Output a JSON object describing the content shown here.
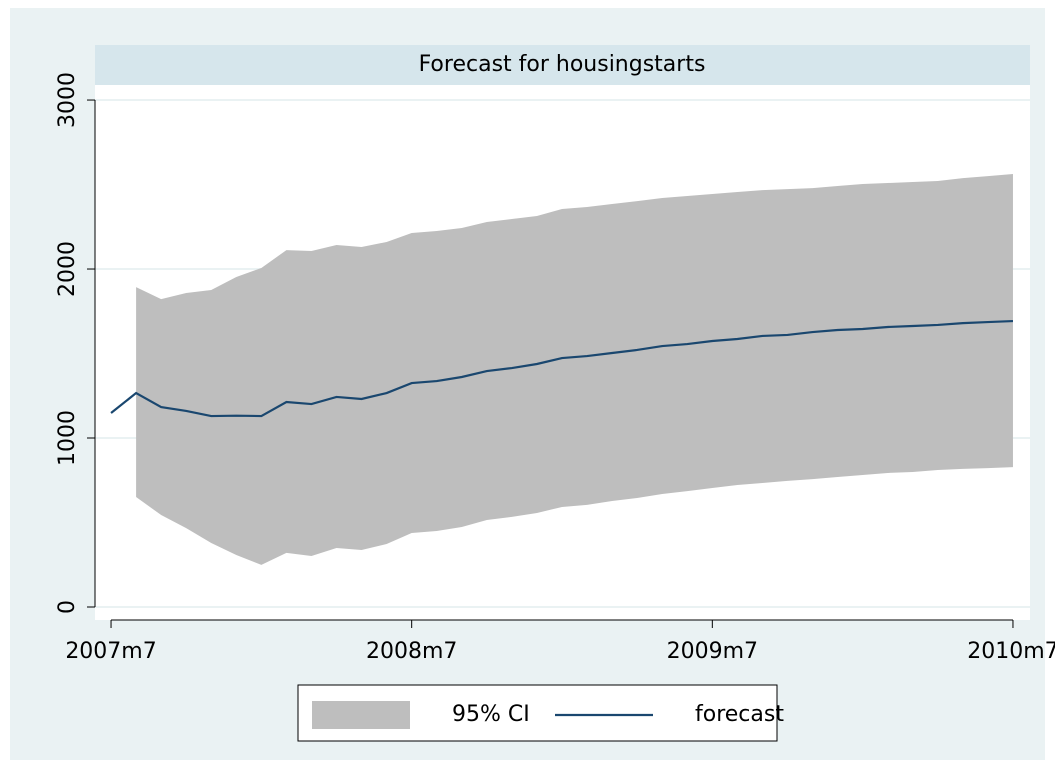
{
  "chart_data": {
    "type": "line",
    "title": "Forecast for housingstarts",
    "x": [
      570,
      571,
      572,
      573,
      574,
      575,
      576,
      577,
      578,
      579,
      580,
      581,
      582,
      583,
      584,
      585,
      586,
      587,
      588,
      589,
      590,
      591,
      592,
      593,
      594,
      595,
      596,
      597,
      598,
      599,
      600,
      601,
      602,
      603,
      604,
      605,
      606
    ],
    "xlim": [
      569.36,
      606.68
    ],
    "xticks": [
      {
        "value": 570,
        "label": "2007m7"
      },
      {
        "value": 582,
        "label": "2008m7"
      },
      {
        "value": 594,
        "label": "2009m7"
      },
      {
        "value": 606,
        "label": "2010m7"
      }
    ],
    "ylim": [
      -77,
      3089
    ],
    "yticks": [
      0,
      1000,
      2000,
      3000
    ],
    "grid": true,
    "series": [
      {
        "name": "95% CI",
        "color": "#bebebe",
        "upper": [
          null,
          1893,
          1822,
          1858,
          1876,
          1953,
          2006,
          2112,
          2107,
          2142,
          2130,
          2160,
          2213,
          2225,
          2243,
          2278,
          2296,
          2314,
          2355,
          2367,
          2385,
          2402,
          2420,
          2432,
          2444,
          2456,
          2467,
          2473,
          2479,
          2491,
          2503,
          2509,
          2515,
          2521,
          2538,
          2550,
          2562
        ],
        "lower": [
          null,
          651,
          544,
          467,
          379,
          308,
          249,
          320,
          302,
          349,
          337,
          373,
          438,
          450,
          473,
          515,
          533,
          556,
          592,
          604,
          627,
          645,
          669,
          686,
          704,
          722,
          734,
          746,
          757,
          769,
          781,
          793,
          799,
          811,
          817,
          822,
          828
        ]
      },
      {
        "name": "forecast",
        "color": "#1a476f",
        "values": [
          1148,
          1266,
          1183,
          1160,
          1130,
          1132,
          1130,
          1213,
          1201,
          1243,
          1231,
          1266,
          1325,
          1337,
          1361,
          1396,
          1414,
          1438,
          1473,
          1485,
          1503,
          1521,
          1544,
          1556,
          1574,
          1586,
          1604,
          1610,
          1627,
          1639,
          1645,
          1657,
          1663,
          1669,
          1680,
          1686,
          1692
        ]
      }
    ]
  }
}
